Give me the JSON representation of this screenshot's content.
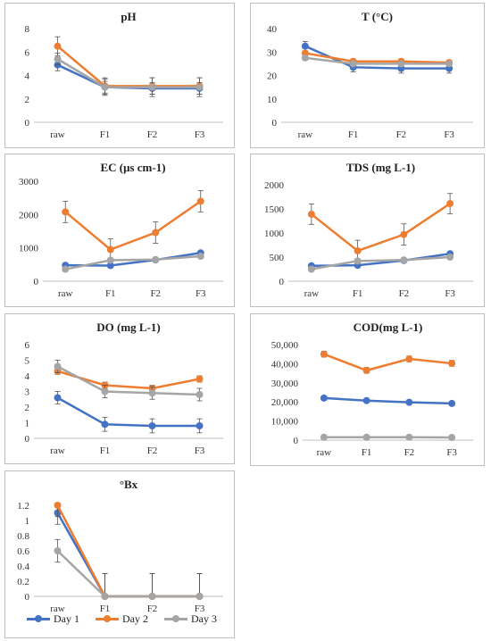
{
  "chart_data": [
    {
      "type": "line",
      "title": "pH",
      "categories": [
        "raw",
        "F1",
        "F2",
        "F3"
      ],
      "yticks": [
        "0",
        "2",
        "4",
        "6",
        "8"
      ],
      "ylim": [
        0,
        8
      ],
      "series": [
        {
          "name": "Day 1",
          "color": "#4472c4",
          "values": [
            4.9,
            3.0,
            2.9,
            2.9
          ],
          "errors": [
            0.5,
            0.5,
            0.5,
            0.5
          ]
        },
        {
          "name": "Day 2",
          "color": "#ed7d31",
          "values": [
            6.5,
            3.1,
            3.1,
            3.1
          ],
          "errors": [
            0.8,
            0.7,
            0.7,
            0.7
          ]
        },
        {
          "name": "Day 3",
          "color": "#a5a5a5",
          "values": [
            5.4,
            3.0,
            3.0,
            3.0
          ],
          "errors": [
            0.5,
            0.7,
            0.8,
            0.8
          ]
        }
      ]
    },
    {
      "type": "line",
      "title": "T (°C)",
      "categories": [
        "raw",
        "F1",
        "F2",
        "F3"
      ],
      "yticks": [
        "0",
        "10",
        "20",
        "30",
        "40"
      ],
      "ylim": [
        0,
        40
      ],
      "series": [
        {
          "name": "Day 1",
          "color": "#4472c4",
          "values": [
            32.5,
            23.5,
            23,
            23
          ],
          "errors": [
            2,
            2,
            2,
            2
          ]
        },
        {
          "name": "Day 2",
          "color": "#ed7d31",
          "values": [
            29.5,
            26,
            26,
            25.5
          ],
          "errors": [
            1,
            1,
            1,
            1
          ]
        },
        {
          "name": "Day 3",
          "color": "#a5a5a5",
          "values": [
            27.5,
            25,
            25,
            25
          ],
          "errors": [
            1,
            1,
            1,
            1
          ]
        }
      ]
    },
    {
      "type": "line",
      "title": "EC (μs cm-1)",
      "categories": [
        "raw",
        "F1",
        "F2",
        "F3"
      ],
      "yticks": [
        "0",
        "1000",
        "2000",
        "3000"
      ],
      "ylim": [
        0,
        3000
      ],
      "series": [
        {
          "name": "Day 1",
          "color": "#4472c4",
          "values": [
            480,
            470,
            640,
            850
          ],
          "errors": [
            60,
            60,
            60,
            60
          ]
        },
        {
          "name": "Day 2",
          "color": "#ed7d31",
          "values": [
            2080,
            950,
            1460,
            2400
          ],
          "errors": [
            320,
            320,
            320,
            320
          ]
        },
        {
          "name": "Day 3",
          "color": "#a5a5a5",
          "values": [
            360,
            630,
            650,
            750
          ],
          "errors": [
            60,
            60,
            60,
            60
          ]
        }
      ]
    },
    {
      "type": "line",
      "title": "TDS (mg L-1)",
      "categories": [
        "raw",
        "F1",
        "F2",
        "F3"
      ],
      "yticks": [
        "0",
        "500",
        "1000",
        "1500",
        "2000"
      ],
      "ylim": [
        0,
        2000
      ],
      "series": [
        {
          "name": "Day 1",
          "color": "#4472c4",
          "values": [
            320,
            330,
            430,
            570
          ],
          "errors": [
            40,
            40,
            40,
            40
          ]
        },
        {
          "name": "Day 2",
          "color": "#ed7d31",
          "values": [
            1390,
            630,
            970,
            1610
          ],
          "errors": [
            210,
            220,
            220,
            210
          ]
        },
        {
          "name": "Day 3",
          "color": "#a5a5a5",
          "values": [
            250,
            420,
            440,
            500
          ],
          "errors": [
            40,
            40,
            40,
            40
          ]
        }
      ]
    },
    {
      "type": "line",
      "title": "DO (mg L-1)",
      "categories": [
        "raw",
        "F1",
        "F2",
        "F3"
      ],
      "yticks": [
        "0",
        "1",
        "2",
        "3",
        "4",
        "5",
        "6"
      ],
      "ylim": [
        0,
        6
      ],
      "series": [
        {
          "name": "Day 1",
          "color": "#4472c4",
          "values": [
            2.6,
            0.9,
            0.8,
            0.8
          ],
          "errors": [
            0.4,
            0.45,
            0.45,
            0.45
          ]
        },
        {
          "name": "Day 2",
          "color": "#ed7d31",
          "values": [
            4.3,
            3.4,
            3.2,
            3.8
          ],
          "errors": [
            0.2,
            0.2,
            0.2,
            0.2
          ]
        },
        {
          "name": "Day 3",
          "color": "#a5a5a5",
          "values": [
            4.6,
            3.0,
            2.9,
            2.8
          ],
          "errors": [
            0.4,
            0.4,
            0.4,
            0.4
          ]
        }
      ]
    },
    {
      "type": "line",
      "title": "COD(mg L-1)",
      "categories": [
        "raw",
        "F1",
        "F2",
        "F3"
      ],
      "yticks": [
        "0",
        "10,000",
        "20,000",
        "30,000",
        "40,000",
        "50,000"
      ],
      "ylim": [
        0,
        50000
      ],
      "series": [
        {
          "name": "Day 1",
          "color": "#4472c4",
          "values": [
            22000,
            20700,
            19800,
            19200
          ],
          "errors": [
            600,
            600,
            600,
            600
          ]
        },
        {
          "name": "Day 2",
          "color": "#ed7d31",
          "values": [
            45000,
            36500,
            42500,
            40200
          ],
          "errors": [
            1500,
            1500,
            1500,
            1500
          ]
        },
        {
          "name": "Day 3",
          "color": "#a5a5a5",
          "values": [
            1500,
            1500,
            1500,
            1400
          ],
          "errors": [
            200,
            200,
            200,
            200
          ]
        }
      ]
    },
    {
      "type": "line",
      "title": "°Bx",
      "categories": [
        "raw",
        "F1",
        "F2",
        "F3"
      ],
      "yticks": [
        "0",
        "0.2",
        "0.4",
        "0.6",
        "0.8",
        "1",
        "1.2"
      ],
      "ylim": [
        0,
        1.2
      ],
      "series": [
        {
          "name": "Day 1",
          "color": "#4472c4",
          "values": [
            1.1,
            0,
            0,
            0
          ],
          "errors": [
            0.15,
            0.3,
            0.3,
            0.3
          ]
        },
        {
          "name": "Day 2",
          "color": "#ed7d31",
          "values": [
            1.2,
            0,
            0,
            0
          ],
          "errors": [
            0.15,
            0.3,
            0.3,
            0.3
          ]
        },
        {
          "name": "Day 3",
          "color": "#a5a5a5",
          "values": [
            0.6,
            0,
            0,
            0
          ],
          "errors": [
            0.15,
            0.3,
            0.3,
            0.3
          ]
        }
      ]
    }
  ],
  "legend": [
    {
      "label": "Day 1",
      "color": "#4472c4"
    },
    {
      "label": "Day 2",
      "color": "#ed7d31"
    },
    {
      "label": "Day 3",
      "color": "#a5a5a5"
    }
  ]
}
